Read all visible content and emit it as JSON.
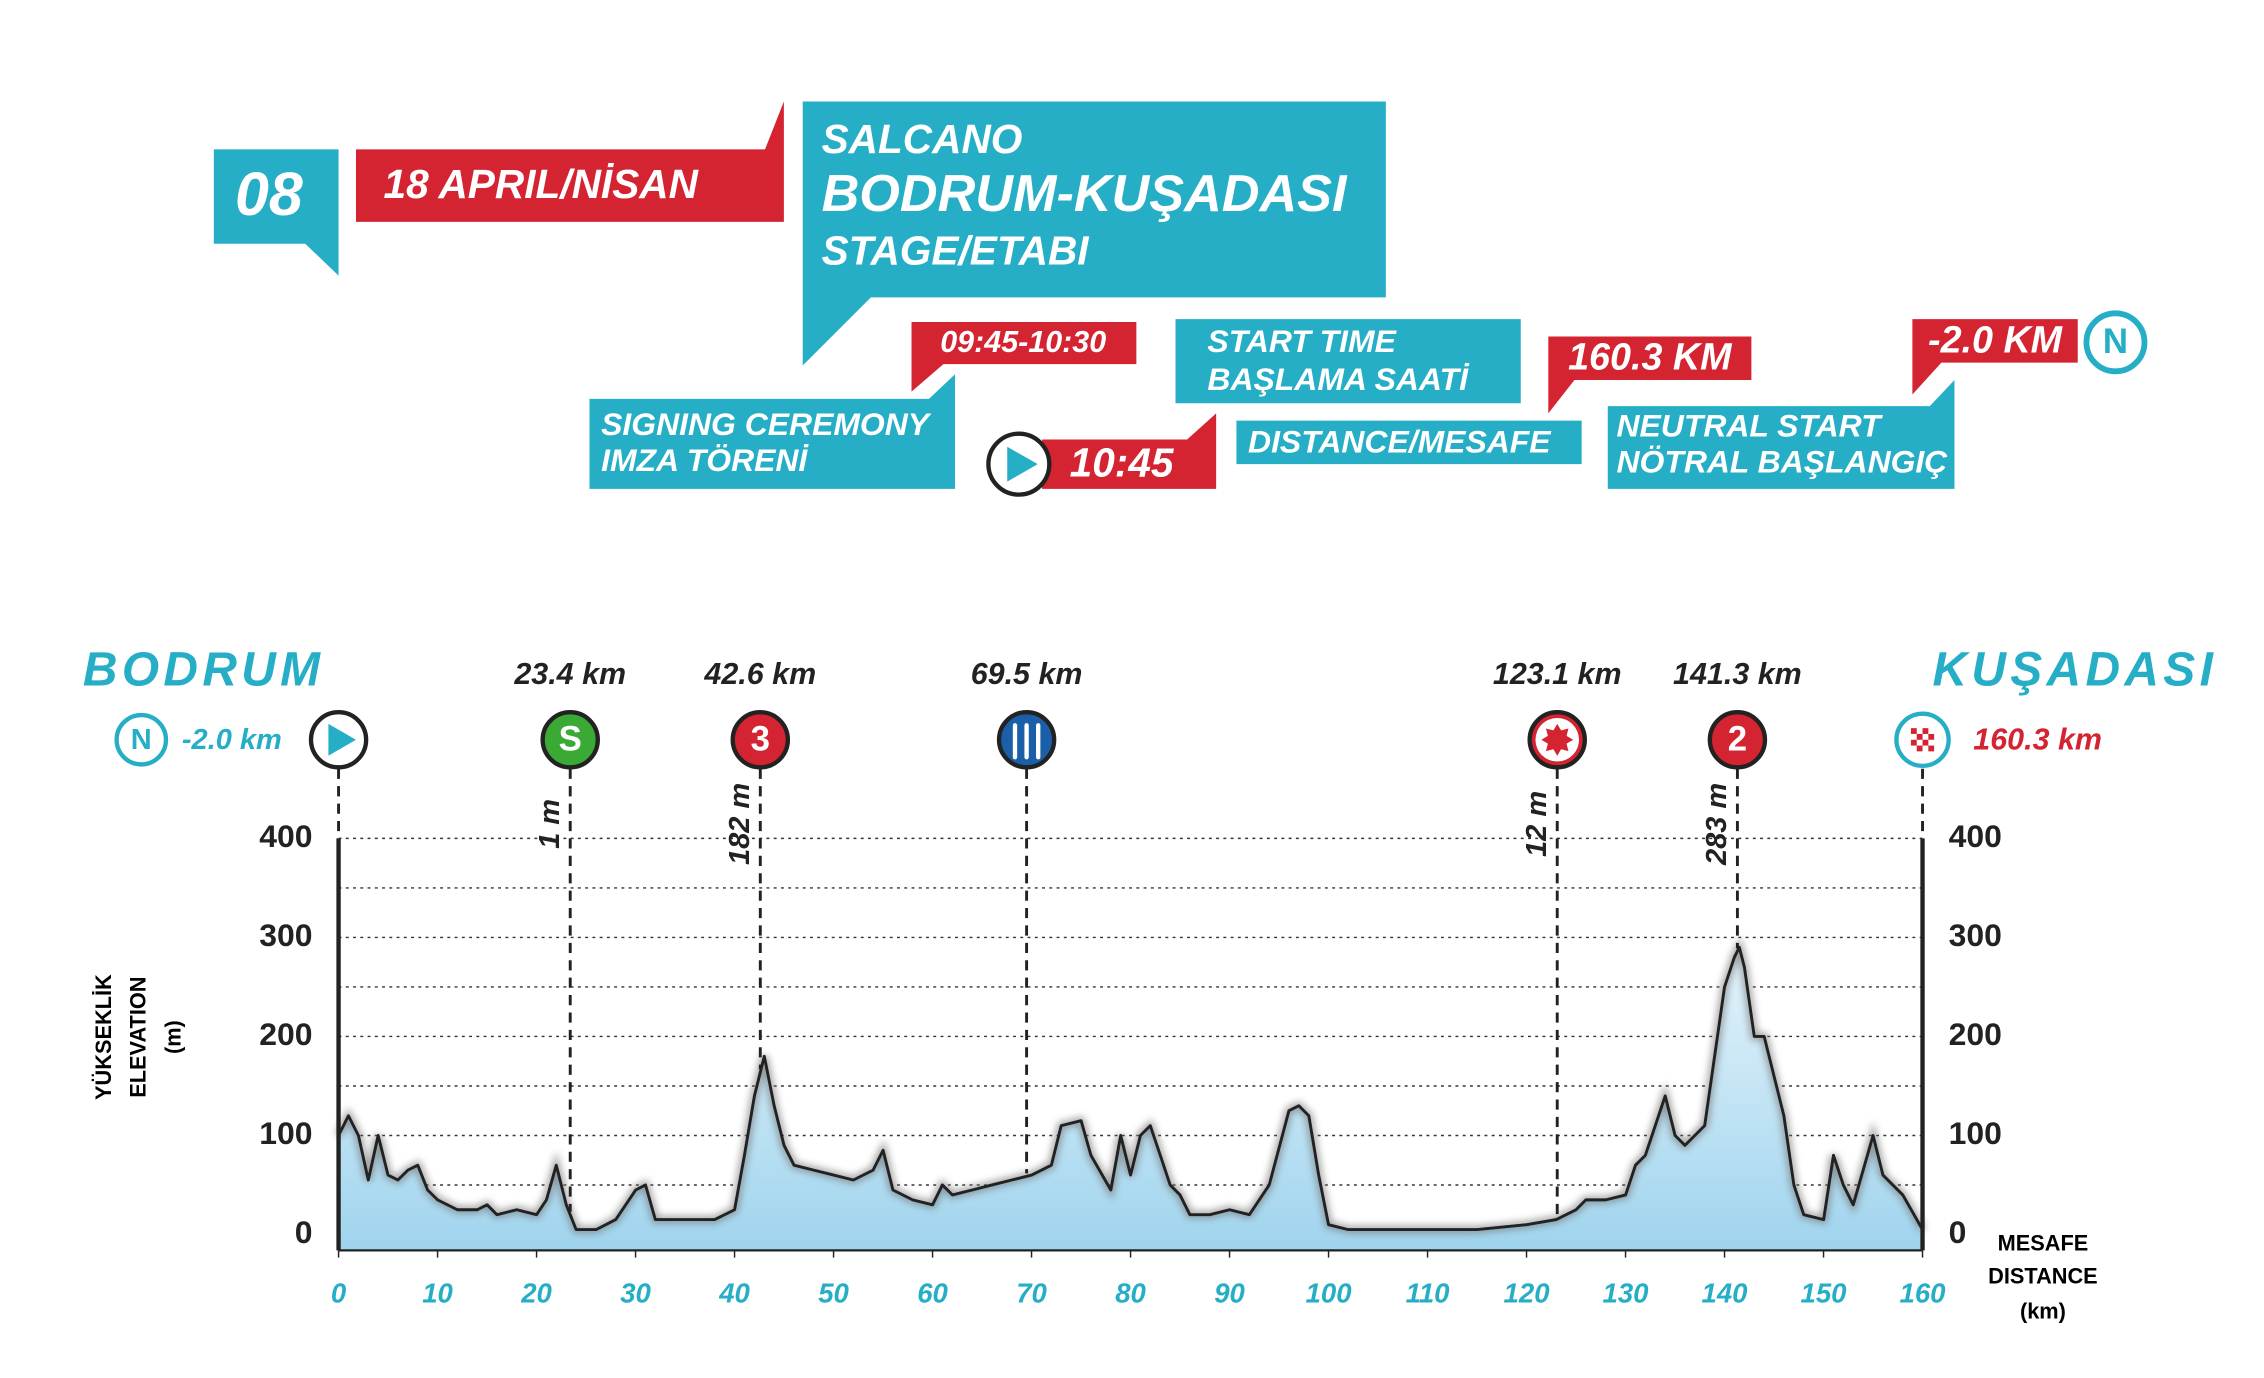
{
  "header": {
    "stage": "08",
    "date": "18 APRIL/NİSAN",
    "sponsor": "SALCANO",
    "route": "BODRUM-KUŞADASI",
    "stage_label": "STAGE/ETABI",
    "signing_time": "09:45-10:30",
    "signing_label_1": "SIGNING CEREMONY",
    "signing_label_2": "IMZA TÖRENİ",
    "start_time": "10:45",
    "start_label_1": "START TIME",
    "start_label_2": "BAŞLAMA SAATİ",
    "distance": "160.3 KM",
    "distance_label": "DISTANCE/MESAFE",
    "neutral": "-2.0 KM",
    "neutral_symbol": "N",
    "neutral_label_1": "NEUTRAL START",
    "neutral_label_2": "NÖTRAL BAŞLANGIÇ"
  },
  "chart_data": {
    "type": "area",
    "start_city": "BODRUM",
    "finish_city": "KUŞADASI",
    "neutral_symbol": "N",
    "neutral_label": "-2.0 km",
    "finish_label": "160.3 km",
    "ylabel": [
      "YÜKSEKLİK",
      "ELEVATION",
      "(m)"
    ],
    "xlabel": [
      "MESAFE",
      "DISTANCE",
      "(km)"
    ],
    "line_color": "#222222",
    "fill_color": "#9fd4ee",
    "x": [
      0,
      1,
      2,
      3,
      4,
      5,
      6,
      7,
      8,
      9,
      10,
      12,
      14,
      15,
      16,
      18,
      20,
      21,
      22,
      23,
      24,
      26,
      28,
      30,
      31,
      32,
      34,
      36,
      38,
      40,
      41,
      42,
      43,
      44,
      45,
      46,
      48,
      50,
      52,
      54,
      55,
      56,
      58,
      60,
      61,
      62,
      64,
      66,
      68,
      70,
      72,
      73,
      75,
      76,
      78,
      79,
      80,
      81,
      82,
      83,
      84,
      85,
      86,
      88,
      90,
      92,
      94,
      96,
      97,
      98,
      99,
      100,
      102,
      105,
      110,
      115,
      120,
      123,
      125,
      126,
      128,
      130,
      131,
      132,
      134,
      135,
      136,
      138,
      140,
      141,
      141.5,
      142,
      143,
      144,
      146,
      147,
      148,
      150,
      151,
      152,
      153,
      155,
      156,
      157,
      158,
      160
    ],
    "values": [
      100,
      120,
      100,
      55,
      100,
      60,
      55,
      65,
      70,
      45,
      35,
      25,
      25,
      30,
      20,
      25,
      20,
      35,
      70,
      30,
      5,
      5,
      15,
      45,
      50,
      15,
      15,
      15,
      15,
      25,
      80,
      140,
      180,
      130,
      90,
      70,
      65,
      60,
      55,
      65,
      85,
      45,
      35,
      30,
      50,
      40,
      45,
      50,
      55,
      60,
      70,
      110,
      115,
      80,
      45,
      100,
      60,
      100,
      110,
      80,
      50,
      40,
      20,
      20,
      25,
      20,
      50,
      125,
      130,
      120,
      60,
      10,
      5,
      5,
      5,
      5,
      10,
      15,
      25,
      35,
      35,
      40,
      70,
      80,
      140,
      100,
      90,
      110,
      250,
      280,
      290,
      270,
      200,
      200,
      120,
      50,
      20,
      15,
      80,
      50,
      30,
      100,
      60,
      50,
      40,
      5
    ],
    "xlim": [
      0,
      160
    ],
    "ylim": [
      -16,
      400
    ],
    "xticks": [
      0,
      10,
      20,
      30,
      40,
      50,
      60,
      70,
      80,
      90,
      100,
      110,
      120,
      130,
      140,
      150,
      160
    ],
    "yticks": [
      0,
      100,
      200,
      300,
      400
    ],
    "minor_grid": [
      50,
      150,
      250,
      350
    ],
    "markers": [
      {
        "x": 23.4,
        "label": "23.4 km",
        "kind": "sprint",
        "symbol": "S",
        "color": "#3aaa35",
        "elevation": 1,
        "elevation_label": "1 m"
      },
      {
        "x": 42.6,
        "label": "42.6 km",
        "kind": "climb",
        "symbol": "3",
        "color": "#d42331",
        "elevation": 182,
        "elevation_label": "182 m"
      },
      {
        "x": 69.5,
        "label": "69.5 km",
        "kind": "feed",
        "color": "#1a5fa8"
      },
      {
        "x": 123.1,
        "label": "123.1 km",
        "kind": "bonus",
        "color": "#d42331",
        "elevation": 12,
        "elevation_label": "12 m"
      },
      {
        "x": 141.3,
        "label": "141.3 km",
        "kind": "climb",
        "symbol": "2",
        "color": "#d42331",
        "elevation": 283,
        "elevation_label": "283 m"
      }
    ]
  }
}
